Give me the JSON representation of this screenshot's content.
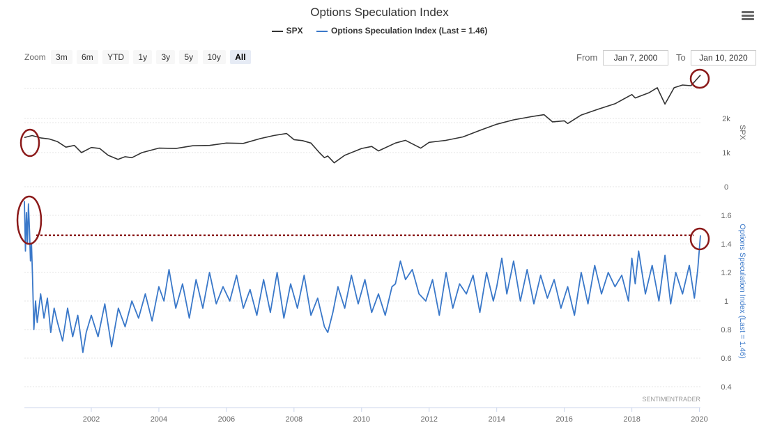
{
  "title": "Options Speculation Index",
  "legend": [
    {
      "label": "SPX",
      "color": "#333333"
    },
    {
      "label": "Options Speculation Index (Last = 1.46)",
      "color": "#3a78c9"
    }
  ],
  "zoom": {
    "label": "Zoom",
    "buttons": [
      "3m",
      "6m",
      "YTD",
      "1y",
      "3y",
      "5y",
      "10y",
      "All"
    ],
    "active": "All"
  },
  "range": {
    "from_label": "From",
    "from_value": "Jan 7, 2000",
    "to_label": "To",
    "to_value": "Jan 10, 2020"
  },
  "credit": "SENTIMENTRADER",
  "colors": {
    "spx": "#333333",
    "osi": "#3a78c9",
    "highlight": "#8b1a1a",
    "grid": "#e6e6e6",
    "axis_title_osi": "#3a78c9"
  },
  "chart_data": {
    "type": "line",
    "x_range": [
      2000.02,
      2020.03
    ],
    "x_ticks": [
      2002,
      2004,
      2006,
      2008,
      2010,
      2012,
      2014,
      2016,
      2018,
      2020
    ],
    "panels": [
      {
        "name": "SPX",
        "axis_title": "SPX",
        "ylim": [
          0,
          3300
        ],
        "y_ticks": [
          0,
          1000,
          2000
        ],
        "y_tick_labels": [
          "0",
          "1k",
          "2k"
        ],
        "series": {
          "name": "SPX",
          "x": [
            2000.02,
            2000.25,
            2000.5,
            2000.75,
            2001.0,
            2001.25,
            2001.5,
            2001.71,
            2002.0,
            2002.25,
            2002.5,
            2002.79,
            2003.0,
            2003.2,
            2003.5,
            2004.0,
            2004.5,
            2005.0,
            2005.5,
            2006.0,
            2006.5,
            2007.0,
            2007.4,
            2007.78,
            2008.0,
            2008.25,
            2008.5,
            2008.75,
            2008.9,
            2009.0,
            2009.19,
            2009.5,
            2010.0,
            2010.3,
            2010.5,
            2011.0,
            2011.3,
            2011.75,
            2012.0,
            2012.5,
            2013.0,
            2013.5,
            2014.0,
            2014.5,
            2015.0,
            2015.4,
            2015.65,
            2016.0,
            2016.1,
            2016.5,
            2017.0,
            2017.5,
            2018.0,
            2018.1,
            2018.5,
            2018.75,
            2018.98,
            2019.25,
            2019.5,
            2019.75,
            2020.03
          ],
          "y": [
            1440,
            1500,
            1430,
            1400,
            1320,
            1160,
            1210,
            1000,
            1150,
            1120,
            920,
            800,
            880,
            850,
            1000,
            1130,
            1120,
            1200,
            1210,
            1280,
            1270,
            1410,
            1500,
            1560,
            1380,
            1350,
            1280,
            1000,
            850,
            900,
            700,
            920,
            1120,
            1180,
            1050,
            1280,
            1360,
            1130,
            1300,
            1360,
            1460,
            1650,
            1830,
            1960,
            2050,
            2110,
            1900,
            1930,
            1850,
            2100,
            2270,
            2430,
            2700,
            2600,
            2750,
            2900,
            2420,
            2900,
            2980,
            2960,
            3270
          ]
        }
      },
      {
        "name": "Options Speculation Index",
        "axis_title": "Options Speculation Index (Last = 1.46)",
        "ylim": [
          0.35,
          1.75
        ],
        "y_ticks": [
          0.4,
          0.6,
          0.8,
          1.0,
          1.2,
          1.4,
          1.6
        ],
        "y_tick_labels": [
          "0.4",
          "0.6",
          "0.8",
          "1",
          "1.2",
          "1.4",
          "1.6"
        ],
        "reference_line": {
          "value": 1.46,
          "label": "Last = 1.46"
        },
        "series": {
          "name": "Options Speculation Index",
          "x": [
            2000.02,
            2000.05,
            2000.08,
            2000.11,
            2000.14,
            2000.17,
            2000.2,
            2000.23,
            2000.26,
            2000.3,
            2000.35,
            2000.4,
            2000.5,
            2000.6,
            2000.7,
            2000.8,
            2000.9,
            2001.0,
            2001.15,
            2001.3,
            2001.45,
            2001.6,
            2001.75,
            2001.85,
            2002.0,
            2002.2,
            2002.4,
            2002.6,
            2002.8,
            2003.0,
            2003.2,
            2003.4,
            2003.6,
            2003.8,
            2004.0,
            2004.15,
            2004.3,
            2004.5,
            2004.7,
            2004.9,
            2005.1,
            2005.3,
            2005.5,
            2005.7,
            2005.9,
            2006.1,
            2006.3,
            2006.5,
            2006.7,
            2006.9,
            2007.1,
            2007.3,
            2007.5,
            2007.7,
            2007.9,
            2008.1,
            2008.3,
            2008.5,
            2008.7,
            2008.9,
            2009.0,
            2009.15,
            2009.3,
            2009.5,
            2009.7,
            2009.9,
            2010.1,
            2010.3,
            2010.5,
            2010.7,
            2010.9,
            2011.0,
            2011.15,
            2011.3,
            2011.5,
            2011.7,
            2011.9,
            2012.1,
            2012.3,
            2012.5,
            2012.7,
            2012.9,
            2013.1,
            2013.3,
            2013.5,
            2013.7,
            2013.9,
            2014.0,
            2014.15,
            2014.3,
            2014.5,
            2014.7,
            2014.9,
            2015.1,
            2015.3,
            2015.5,
            2015.7,
            2015.9,
            2016.1,
            2016.3,
            2016.5,
            2016.7,
            2016.9,
            2017.1,
            2017.3,
            2017.5,
            2017.7,
            2017.9,
            2018.0,
            2018.1,
            2018.2,
            2018.4,
            2018.6,
            2018.8,
            2018.98,
            2019.15,
            2019.3,
            2019.5,
            2019.7,
            2019.85,
            2019.95,
            2020.03
          ],
          "y": [
            1.7,
            1.35,
            1.62,
            1.4,
            1.68,
            1.5,
            1.28,
            1.4,
            1.18,
            0.8,
            1.0,
            0.85,
            1.05,
            0.88,
            1.02,
            0.78,
            0.95,
            0.85,
            0.72,
            0.95,
            0.75,
            0.9,
            0.64,
            0.78,
            0.9,
            0.75,
            0.98,
            0.68,
            0.95,
            0.82,
            1.0,
            0.88,
            1.05,
            0.86,
            1.1,
            1.0,
            1.22,
            0.95,
            1.12,
            0.88,
            1.15,
            0.95,
            1.2,
            0.98,
            1.1,
            1.0,
            1.18,
            0.95,
            1.08,
            0.9,
            1.15,
            0.92,
            1.2,
            0.88,
            1.12,
            0.95,
            1.18,
            0.9,
            1.02,
            0.82,
            0.78,
            0.92,
            1.1,
            0.95,
            1.18,
            0.98,
            1.15,
            0.92,
            1.05,
            0.9,
            1.1,
            1.12,
            1.28,
            1.15,
            1.22,
            1.05,
            1.0,
            1.15,
            0.9,
            1.2,
            0.95,
            1.12,
            1.05,
            1.18,
            0.92,
            1.2,
            1.0,
            1.1,
            1.3,
            1.05,
            1.28,
            1.0,
            1.22,
            0.98,
            1.18,
            1.02,
            1.15,
            0.95,
            1.1,
            0.9,
            1.2,
            0.98,
            1.25,
            1.05,
            1.2,
            1.1,
            1.18,
            1.0,
            1.3,
            1.12,
            1.35,
            1.05,
            1.25,
            1.0,
            1.32,
            0.98,
            1.2,
            1.05,
            1.25,
            1.02,
            1.22,
            1.46
          ]
        }
      }
    ]
  }
}
